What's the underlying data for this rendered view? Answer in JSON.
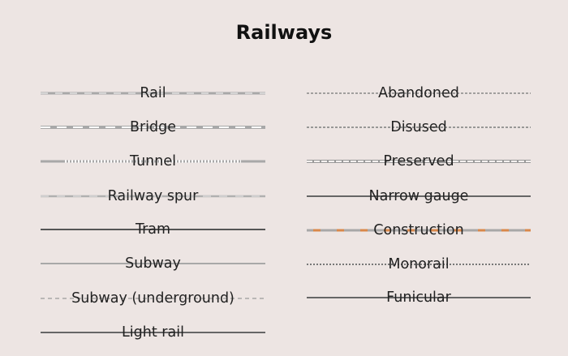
{
  "header": {
    "title": "Railways"
  },
  "legend": {
    "left": [
      {
        "label": "Rail",
        "style": "rail"
      },
      {
        "label": "Bridge",
        "style": "bridge"
      },
      {
        "label": "Tunnel",
        "style": "tunnel"
      },
      {
        "label": "Railway spur",
        "style": "spur"
      },
      {
        "label": "Tram",
        "style": "tram"
      },
      {
        "label": "Subway",
        "style": "subway"
      },
      {
        "label": "Subway (underground)",
        "style": "subway-underground"
      },
      {
        "label": "Light rail",
        "style": "light-rail"
      }
    ],
    "right": [
      {
        "label": "Abandoned",
        "style": "abandoned"
      },
      {
        "label": "Disused",
        "style": "disused"
      },
      {
        "label": "Preserved",
        "style": "preserved"
      },
      {
        "label": "Narrow gauge",
        "style": "narrow-gauge"
      },
      {
        "label": "Construction",
        "style": "construction"
      },
      {
        "label": "Monorail",
        "style": "monorail"
      },
      {
        "label": "Funicular",
        "style": "funicular"
      }
    ]
  },
  "colors": {
    "background": "#ede5e3",
    "rail_gray": "#a8a8a8",
    "dark_line": "#555555",
    "construction_orange": "#d9884a"
  }
}
